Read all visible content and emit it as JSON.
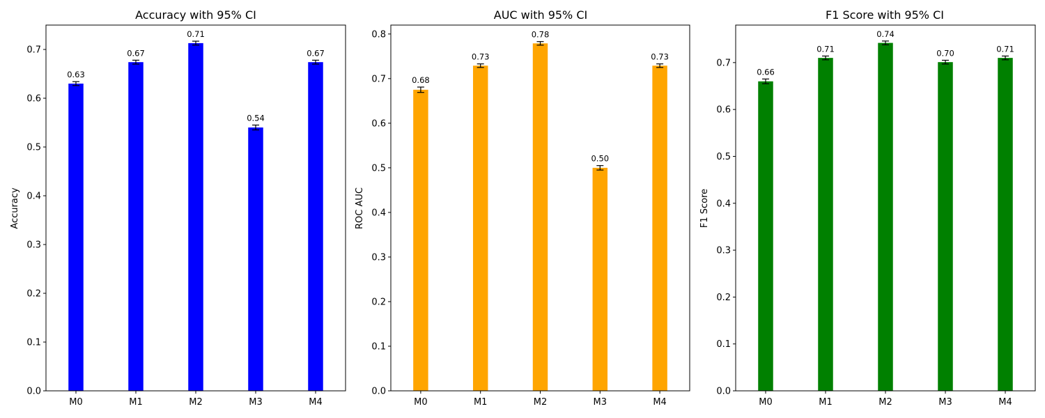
{
  "chart_data": [
    {
      "type": "bar",
      "title": "Accuracy with 95% CI",
      "xlabel": "",
      "ylabel": "Accuracy",
      "categories": [
        "M0",
        "M1",
        "M2",
        "M3",
        "M4"
      ],
      "values": [
        0.63,
        0.674,
        0.713,
        0.54,
        0.674
      ],
      "ci_halfwidth": [
        0.004,
        0.004,
        0.004,
        0.005,
        0.004
      ],
      "data_labels": [
        "0.63",
        "0.67",
        "0.71",
        "0.54",
        "0.67"
      ],
      "ylim": [
        0,
        0.75
      ],
      "yticks": [
        0.0,
        0.1,
        0.2,
        0.3,
        0.4,
        0.5,
        0.6,
        0.7
      ],
      "ytick_labels": [
        "0.0",
        "0.1",
        "0.2",
        "0.3",
        "0.4",
        "0.5",
        "0.6",
        "0.7"
      ],
      "color": "#0000ff",
      "grid": false,
      "legend": "none"
    },
    {
      "type": "bar",
      "title": "AUC with 95% CI",
      "xlabel": "",
      "ylabel": "ROC AUC",
      "categories": [
        "M0",
        "M1",
        "M2",
        "M3",
        "M4"
      ],
      "values": [
        0.675,
        0.729,
        0.779,
        0.5,
        0.729
      ],
      "ci_halfwidth": [
        0.006,
        0.004,
        0.004,
        0.005,
        0.004
      ],
      "data_labels": [
        "0.68",
        "0.73",
        "0.78",
        "0.50",
        "0.73"
      ],
      "ylim": [
        0,
        0.82
      ],
      "yticks": [
        0.0,
        0.1,
        0.2,
        0.3,
        0.4,
        0.5,
        0.6,
        0.7,
        0.8
      ],
      "ytick_labels": [
        "0.0",
        "0.1",
        "0.2",
        "0.3",
        "0.4",
        "0.5",
        "0.6",
        "0.7",
        "0.8"
      ],
      "color": "#ffa500",
      "grid": false,
      "legend": "none"
    },
    {
      "type": "bar",
      "title": "F1 Score with 95% CI",
      "xlabel": "",
      "ylabel": "F1 Score",
      "categories": [
        "M0",
        "M1",
        "M2",
        "M3",
        "M4"
      ],
      "values": [
        0.66,
        0.71,
        0.742,
        0.701,
        0.71
      ],
      "ci_halfwidth": [
        0.005,
        0.004,
        0.004,
        0.004,
        0.004
      ],
      "data_labels": [
        "0.66",
        "0.71",
        "0.74",
        "0.70",
        "0.71"
      ],
      "ylim": [
        0,
        0.78
      ],
      "yticks": [
        0.0,
        0.1,
        0.2,
        0.3,
        0.4,
        0.5,
        0.6,
        0.7
      ],
      "ytick_labels": [
        "0.0",
        "0.1",
        "0.2",
        "0.3",
        "0.4",
        "0.5",
        "0.6",
        "0.7"
      ],
      "color": "#008000",
      "grid": false,
      "legend": "none"
    }
  ]
}
